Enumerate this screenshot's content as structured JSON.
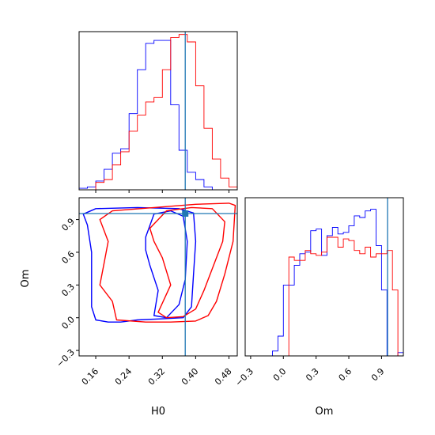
{
  "colors": {
    "series_a": "#0000ff",
    "series_b": "#ff0000",
    "truth": "#1f77b4",
    "frame": "#000000"
  },
  "chart_data": [
    {
      "type": "histogram",
      "panel": "H0 marginal",
      "xlabel": "",
      "xlim": [
        0.12,
        0.5
      ],
      "truth": 0.375,
      "bin_edges": [
        0.12,
        0.14,
        0.16,
        0.18,
        0.2,
        0.22,
        0.24,
        0.26,
        0.28,
        0.3,
        0.32,
        0.34,
        0.36,
        0.38,
        0.4,
        0.42,
        0.44,
        0.46,
        0.48,
        0.5
      ],
      "series": [
        {
          "color": "blue",
          "counts": [
            1,
            2,
            6,
            14,
            25,
            28,
            52,
            82,
            100,
            102,
            102,
            58,
            27,
            12,
            7,
            2,
            0,
            0,
            0
          ]
        },
        {
          "color": "red",
          "counts": [
            0,
            0,
            5,
            7,
            17,
            26,
            40,
            51,
            60,
            63,
            82,
            104,
            106,
            101,
            71,
            42,
            21,
            8,
            2
          ]
        }
      ]
    },
    {
      "type": "histogram",
      "panel": "Om marginal",
      "xlabel": "Om",
      "xlim": [
        -0.35,
        1.1
      ],
      "xticks": [
        "−0.3",
        "0.0",
        "0.3",
        "0.6",
        "0.9"
      ],
      "truth": 0.955,
      "bin_edges": [
        -0.35,
        -0.3,
        -0.25,
        -0.2,
        -0.15,
        -0.1,
        -0.05,
        0.0,
        0.05,
        0.1,
        0.15,
        0.2,
        0.25,
        0.3,
        0.35,
        0.4,
        0.45,
        0.5,
        0.55,
        0.6,
        0.65,
        0.7,
        0.75,
        0.8,
        0.85,
        0.9,
        0.95,
        1.0,
        1.05,
        1.1
      ],
      "series": [
        {
          "color": "blue",
          "counts": [
            0,
            0,
            0,
            0,
            0,
            3,
            12,
            43,
            43,
            55,
            62,
            63,
            76,
            77,
            61,
            73,
            78,
            74,
            75,
            79,
            85,
            84,
            88,
            89,
            67,
            40,
            0,
            0,
            2
          ]
        },
        {
          "color": "red",
          "counts": [
            0,
            0,
            0,
            0,
            0,
            0,
            0,
            0,
            60,
            58,
            58,
            64,
            62,
            61,
            63,
            72,
            72,
            66,
            71,
            70,
            64,
            62,
            66,
            60,
            62,
            62,
            64,
            40,
            0
          ]
        }
      ]
    },
    {
      "type": "contour",
      "panel": "H0 vs Om",
      "xlabel": "H0",
      "ylabel": "Om",
      "xlim": [
        0.12,
        0.5
      ],
      "ylim": [
        -0.35,
        1.1
      ],
      "xticks": [
        "0.16",
        "0.24",
        "0.32",
        "0.40",
        "0.48"
      ],
      "yticks": [
        "−0.3",
        "0.0",
        "0.3",
        "0.6",
        "0.9"
      ],
      "truth": {
        "H0": 0.375,
        "Om": 0.955
      },
      "series": [
        {
          "color": "blue",
          "contours": [
            [
              [
                0.16,
                1.0
              ],
              [
                0.26,
                1.01
              ],
              [
                0.36,
                1.0
              ],
              [
                0.395,
                0.96
              ],
              [
                0.4,
                0.7
              ],
              [
                0.395,
                0.4
              ],
              [
                0.39,
                0.1
              ],
              [
                0.37,
                0.0
              ],
              [
                0.32,
                -0.01
              ],
              [
                0.26,
                -0.02
              ],
              [
                0.22,
                -0.04
              ],
              [
                0.19,
                -0.04
              ],
              [
                0.16,
                -0.02
              ],
              [
                0.15,
                0.1
              ],
              [
                0.15,
                0.4
              ],
              [
                0.15,
                0.6
              ],
              [
                0.14,
                0.85
              ],
              [
                0.13,
                0.95
              ]
            ],
            [
              [
                0.28,
                0.74
              ],
              [
                0.3,
                0.95
              ],
              [
                0.34,
                0.98
              ],
              [
                0.37,
                0.93
              ],
              [
                0.38,
                0.7
              ],
              [
                0.375,
                0.35
              ],
              [
                0.36,
                0.12
              ],
              [
                0.33,
                0.0
              ],
              [
                0.3,
                0.02
              ],
              [
                0.31,
                0.25
              ],
              [
                0.29,
                0.48
              ],
              [
                0.28,
                0.62
              ]
            ]
          ]
        },
        {
          "color": "red",
          "contours": [
            [
              [
                0.2,
                0.98
              ],
              [
                0.3,
                1.01
              ],
              [
                0.4,
                1.04
              ],
              [
                0.48,
                1.05
              ],
              [
                0.495,
                1.03
              ],
              [
                0.49,
                0.7
              ],
              [
                0.47,
                0.4
              ],
              [
                0.45,
                0.15
              ],
              [
                0.43,
                0.02
              ],
              [
                0.4,
                -0.03
              ],
              [
                0.34,
                -0.04
              ],
              [
                0.28,
                -0.04
              ],
              [
                0.21,
                -0.02
              ],
              [
                0.2,
                0.15
              ],
              [
                0.17,
                0.3
              ],
              [
                0.18,
                0.5
              ],
              [
                0.19,
                0.7
              ],
              [
                0.17,
                0.9
              ]
            ],
            [
              [
                0.29,
                0.82
              ],
              [
                0.33,
                0.98
              ],
              [
                0.39,
                1.01
              ],
              [
                0.44,
                1.0
              ],
              [
                0.47,
                0.88
              ],
              [
                0.465,
                0.7
              ],
              [
                0.44,
                0.45
              ],
              [
                0.42,
                0.25
              ],
              [
                0.4,
                0.08
              ],
              [
                0.37,
                0.01
              ],
              [
                0.33,
                0.0
              ],
              [
                0.31,
                0.05
              ],
              [
                0.34,
                0.3
              ],
              [
                0.32,
                0.55
              ],
              [
                0.3,
                0.7
              ]
            ]
          ]
        }
      ]
    }
  ]
}
